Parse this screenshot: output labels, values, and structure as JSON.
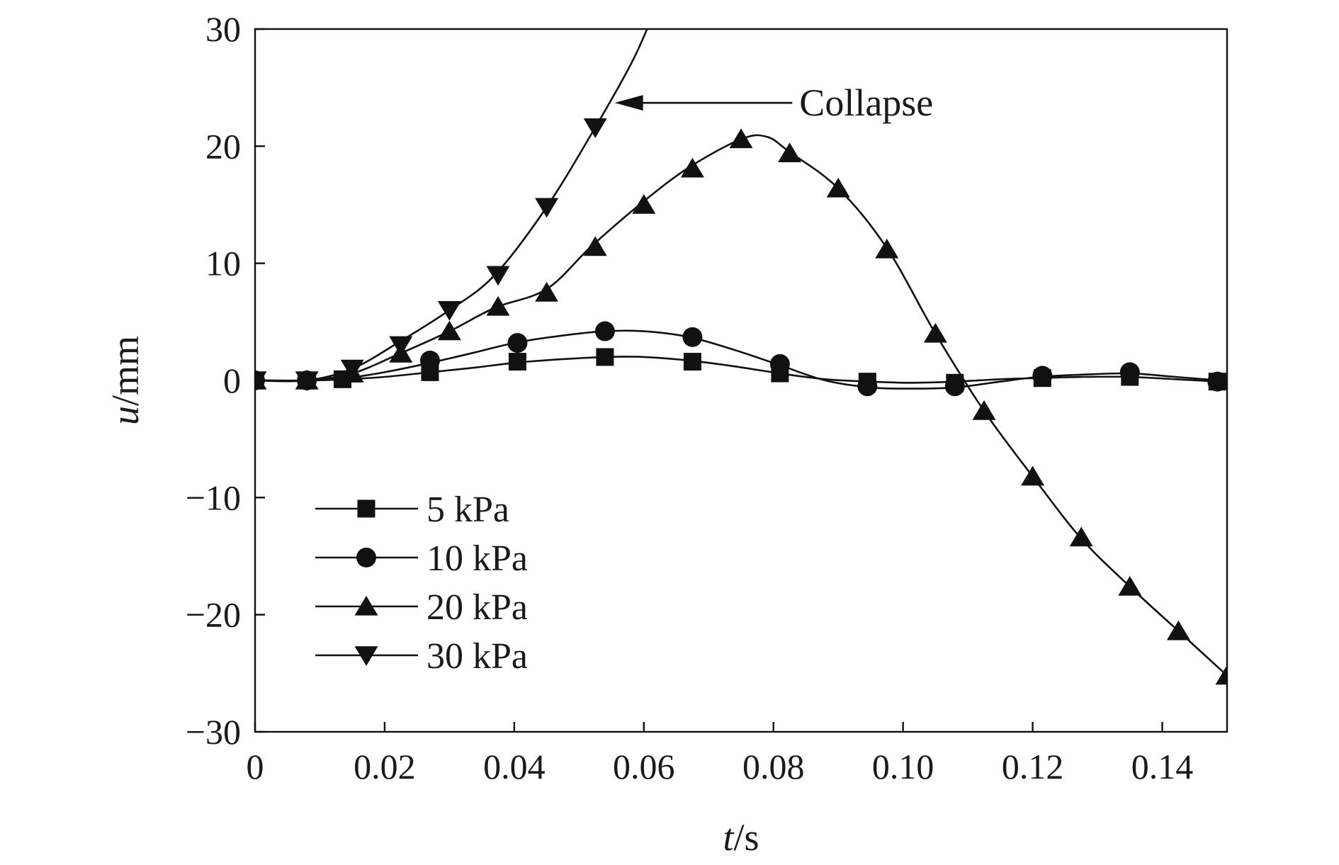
{
  "chart_data": {
    "type": "line",
    "title": "",
    "xlabel": {
      "var": "t",
      "unit": "/s"
    },
    "ylabel": {
      "var": "u",
      "unit": "/mm"
    },
    "xlim": [
      0,
      0.15
    ],
    "ylim": [
      -30,
      30
    ],
    "xticks": [
      0,
      0.02,
      0.04,
      0.06,
      0.08,
      0.1,
      0.12,
      0.14
    ],
    "xtick_labels": [
      "0",
      "0.02",
      "0.04",
      "0.06",
      "0.08",
      "0.10",
      "0.12",
      "0.14"
    ],
    "yticks": [
      -30,
      -20,
      -10,
      0,
      10,
      20,
      30
    ],
    "ytick_labels": [
      "−30",
      "−20",
      "−10",
      "0",
      "10",
      "20",
      "30"
    ],
    "grid": false,
    "legend_position": "lower-left",
    "series": [
      {
        "name": "5 kPa",
        "marker": "square",
        "curve": [
          [
            0,
            0
          ],
          [
            0.008,
            0
          ],
          [
            0.014,
            0.1
          ],
          [
            0.02,
            0.3
          ],
          [
            0.027,
            0.7
          ],
          [
            0.034,
            1.1
          ],
          [
            0.04,
            1.5
          ],
          [
            0.047,
            1.8
          ],
          [
            0.054,
            2.0
          ],
          [
            0.06,
            2.0
          ],
          [
            0.067,
            1.7
          ],
          [
            0.074,
            1.2
          ],
          [
            0.081,
            0.6
          ],
          [
            0.088,
            0.1
          ],
          [
            0.095,
            -0.1
          ],
          [
            0.101,
            -0.2
          ],
          [
            0.108,
            -0.1
          ],
          [
            0.115,
            0.1
          ],
          [
            0.121,
            0.2
          ],
          [
            0.128,
            0.3
          ],
          [
            0.135,
            0.3
          ],
          [
            0.142,
            0.1
          ],
          [
            0.149,
            -0.1
          ]
        ],
        "markers": [
          [
            0,
            0
          ],
          [
            0.008,
            0
          ],
          [
            0.0135,
            0.1
          ],
          [
            0.027,
            0.7
          ],
          [
            0.0405,
            1.6
          ],
          [
            0.054,
            2.0
          ],
          [
            0.0675,
            1.6
          ],
          [
            0.081,
            0.6
          ],
          [
            0.0945,
            -0.1
          ],
          [
            0.108,
            -0.2
          ],
          [
            0.1215,
            0.2
          ],
          [
            0.135,
            0.3
          ],
          [
            0.1485,
            -0.1
          ]
        ]
      },
      {
        "name": "10 kPa",
        "marker": "circle",
        "curve": [
          [
            0,
            0
          ],
          [
            0.008,
            0
          ],
          [
            0.014,
            0.2
          ],
          [
            0.02,
            0.7
          ],
          [
            0.027,
            1.5
          ],
          [
            0.034,
            2.4
          ],
          [
            0.04,
            3.2
          ],
          [
            0.047,
            3.8
          ],
          [
            0.054,
            4.2
          ],
          [
            0.06,
            4.2
          ],
          [
            0.067,
            3.7
          ],
          [
            0.074,
            2.6
          ],
          [
            0.081,
            1.3
          ],
          [
            0.088,
            0
          ],
          [
            0.095,
            -0.6
          ],
          [
            0.101,
            -0.7
          ],
          [
            0.108,
            -0.6
          ],
          [
            0.115,
            -0.1
          ],
          [
            0.121,
            0.3
          ],
          [
            0.128,
            0.5
          ],
          [
            0.135,
            0.6
          ],
          [
            0.142,
            0.3
          ],
          [
            0.149,
            0
          ]
        ],
        "markers": [
          [
            0,
            0
          ],
          [
            0.008,
            0
          ],
          [
            0.027,
            1.7
          ],
          [
            0.0405,
            3.2
          ],
          [
            0.054,
            4.2
          ],
          [
            0.0675,
            3.7
          ],
          [
            0.081,
            1.4
          ],
          [
            0.0945,
            -0.5
          ],
          [
            0.108,
            -0.5
          ],
          [
            0.1215,
            0.4
          ],
          [
            0.135,
            0.7
          ],
          [
            0.1485,
            -0.1
          ]
        ]
      },
      {
        "name": "20 kPa",
        "marker": "triangle-up",
        "curve": [
          [
            0,
            0
          ],
          [
            0.008,
            0
          ],
          [
            0.015,
            0.6
          ],
          [
            0.022,
            2.2
          ],
          [
            0.03,
            4.2
          ],
          [
            0.037,
            6.2
          ],
          [
            0.045,
            7.8
          ],
          [
            0.052,
            11.5
          ],
          [
            0.06,
            15.3
          ],
          [
            0.067,
            18.2
          ],
          [
            0.075,
            20.6
          ],
          [
            0.079,
            20.8
          ],
          [
            0.0825,
            19.5
          ],
          [
            0.09,
            16.4
          ],
          [
            0.0975,
            11.3
          ],
          [
            0.105,
            4.0
          ],
          [
            0.1125,
            -2.6
          ],
          [
            0.12,
            -8.2
          ],
          [
            0.1275,
            -13.5
          ],
          [
            0.135,
            -17.6
          ],
          [
            0.1425,
            -21.4
          ],
          [
            0.15,
            -25.2
          ]
        ],
        "markers": [
          [
            0,
            0
          ],
          [
            0.008,
            0
          ],
          [
            0.015,
            0.6
          ],
          [
            0.0225,
            2.3
          ],
          [
            0.03,
            4.2
          ],
          [
            0.0375,
            6.3
          ],
          [
            0.045,
            7.5
          ],
          [
            0.0525,
            11.4
          ],
          [
            0.06,
            15.0
          ],
          [
            0.0675,
            18.1
          ],
          [
            0.075,
            20.6
          ],
          [
            0.0825,
            19.4
          ],
          [
            0.09,
            16.4
          ],
          [
            0.0975,
            11.2
          ],
          [
            0.105,
            4.0
          ],
          [
            0.1125,
            -2.6
          ],
          [
            0.12,
            -8.2
          ],
          [
            0.1275,
            -13.4
          ],
          [
            0.135,
            -17.6
          ],
          [
            0.1425,
            -21.4
          ],
          [
            0.15,
            -25.2
          ]
        ]
      },
      {
        "name": "30 kPa",
        "marker": "triangle-down",
        "curve": [
          [
            0,
            0
          ],
          [
            0.008,
            0
          ],
          [
            0.015,
            1.0
          ],
          [
            0.022,
            3.2
          ],
          [
            0.03,
            6.0
          ],
          [
            0.037,
            9.0
          ],
          [
            0.045,
            14.8
          ],
          [
            0.0525,
            21.6
          ],
          [
            0.058,
            27.0
          ],
          [
            0.0605,
            30.0
          ]
        ],
        "markers": [
          [
            0,
            0
          ],
          [
            0.008,
            0
          ],
          [
            0.015,
            1.0
          ],
          [
            0.0225,
            3.0
          ],
          [
            0.03,
            6.0
          ],
          [
            0.0375,
            9.0
          ],
          [
            0.045,
            14.8
          ],
          [
            0.0525,
            21.6
          ]
        ]
      }
    ],
    "annotations": [
      {
        "text": "Collapse",
        "points_to": [
          0.0555,
          23.7
        ],
        "text_at": [
          0.0805,
          23.7
        ]
      }
    ]
  }
}
